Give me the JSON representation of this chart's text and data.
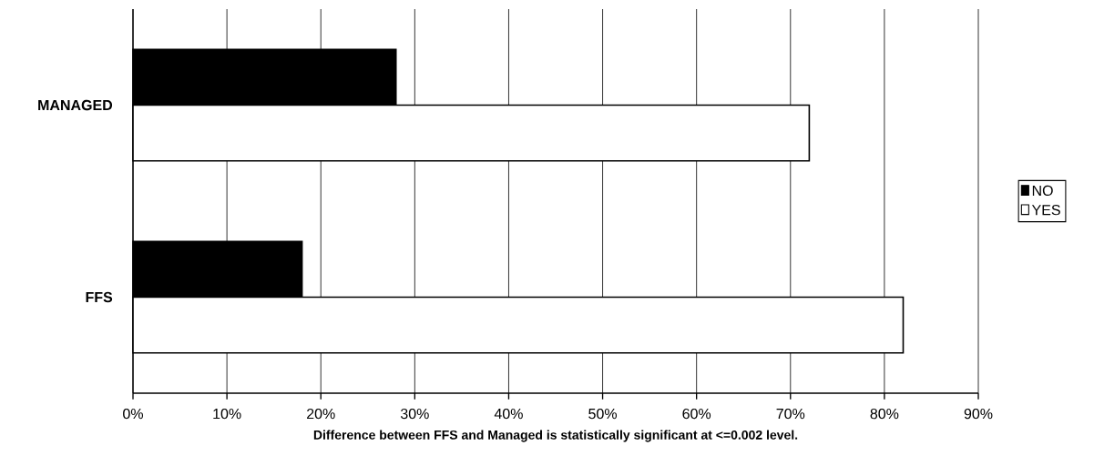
{
  "chart_data": {
    "type": "bar",
    "orientation": "horizontal",
    "categories": [
      "MANAGED",
      "FFS"
    ],
    "series": [
      {
        "name": "NO",
        "color": "#000000",
        "values": [
          28,
          18
        ]
      },
      {
        "name": "YES",
        "color": "#ffffff",
        "values": [
          72,
          82
        ]
      }
    ],
    "xlim": [
      0,
      90
    ],
    "xticks": [
      {
        "value": 0,
        "label": "0%"
      },
      {
        "value": 10,
        "label": "10%"
      },
      {
        "value": 20,
        "label": "20%"
      },
      {
        "value": 30,
        "label": "30%"
      },
      {
        "value": 40,
        "label": "40%"
      },
      {
        "value": 50,
        "label": "50%"
      },
      {
        "value": 60,
        "label": "60%"
      },
      {
        "value": 70,
        "label": "70%"
      },
      {
        "value": 80,
        "label": "80%"
      },
      {
        "value": 90,
        "label": "90%"
      }
    ],
    "xlabel": "Difference between FFS and Managed is statistically significant at <=0.002 level.",
    "grid": "x",
    "legend": "right"
  }
}
